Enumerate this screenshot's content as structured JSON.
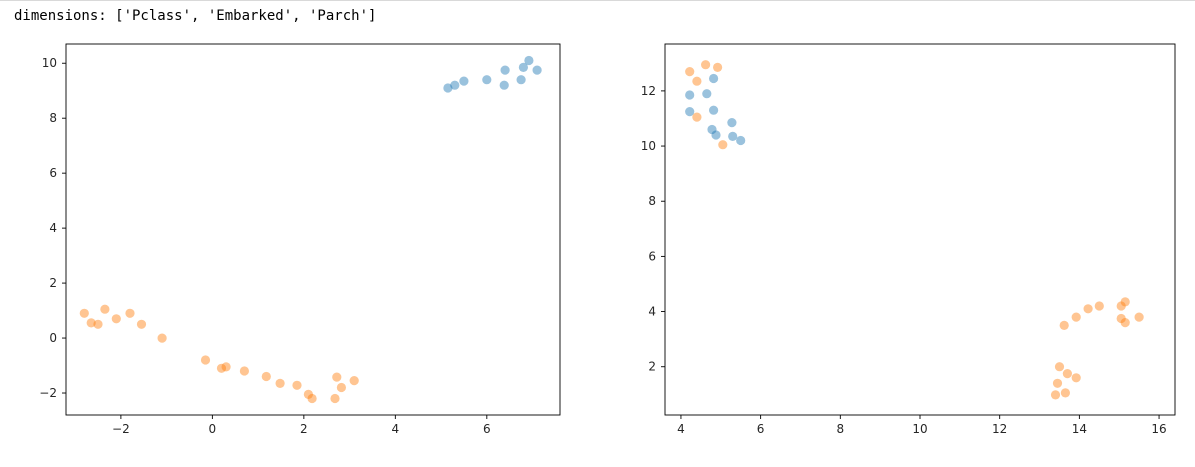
{
  "output": {
    "caption": "dimensions: ['Pclass', 'Embarked', 'Parch']"
  },
  "colors": {
    "series_a": "#1f77b4",
    "series_b": "#ff7f0e",
    "axis": "#000000",
    "tick_text": "#262626"
  },
  "chart_data": [
    {
      "type": "scatter",
      "xlim": [
        -3.2,
        7.6
      ],
      "ylim": [
        -2.8,
        10.7
      ],
      "xticks": [
        -2,
        0,
        2,
        4,
        6
      ],
      "yticks": [
        -2,
        0,
        2,
        4,
        6,
        8,
        10
      ],
      "grid": false,
      "series": [
        {
          "color": "#1f77b4",
          "points": [
            [
              5.15,
              9.1
            ],
            [
              5.3,
              9.2
            ],
            [
              5.5,
              9.35
            ],
            [
              6.0,
              9.4
            ],
            [
              6.38,
              9.2
            ],
            [
              6.4,
              9.75
            ],
            [
              6.75,
              9.4
            ],
            [
              6.8,
              9.85
            ],
            [
              6.92,
              10.1
            ],
            [
              7.1,
              9.75
            ]
          ]
        },
        {
          "color": "#ff7f0e",
          "points": [
            [
              -2.8,
              0.9
            ],
            [
              -2.65,
              0.55
            ],
            [
              -2.5,
              0.5
            ],
            [
              -2.35,
              1.05
            ],
            [
              -2.1,
              0.7
            ],
            [
              -1.8,
              0.9
            ],
            [
              -1.55,
              0.5
            ],
            [
              -1.1,
              0.0
            ],
            [
              -0.15,
              -0.8
            ],
            [
              0.2,
              -1.1
            ],
            [
              0.3,
              -1.05
            ],
            [
              0.7,
              -1.2
            ],
            [
              1.18,
              -1.4
            ],
            [
              1.48,
              -1.65
            ],
            [
              1.85,
              -1.72
            ],
            [
              2.1,
              -2.05
            ],
            [
              2.18,
              -2.2
            ],
            [
              2.68,
              -2.2
            ],
            [
              2.72,
              -1.42
            ],
            [
              2.82,
              -1.8
            ],
            [
              3.1,
              -1.55
            ]
          ]
        }
      ]
    },
    {
      "type": "scatter",
      "xlim": [
        3.6,
        16.4
      ],
      "ylim": [
        0.25,
        13.7
      ],
      "xticks": [
        4,
        6,
        8,
        10,
        12,
        14,
        16
      ],
      "yticks": [
        2,
        4,
        6,
        8,
        10,
        12
      ],
      "grid": false,
      "series": [
        {
          "color": "#1f77b4",
          "points": [
            [
              4.22,
              11.85
            ],
            [
              4.22,
              11.25
            ],
            [
              4.65,
              11.9
            ],
            [
              4.82,
              12.45
            ],
            [
              4.82,
              11.3
            ],
            [
              4.78,
              10.6
            ],
            [
              4.88,
              10.4
            ],
            [
              5.28,
              10.85
            ],
            [
              5.3,
              10.35
            ],
            [
              5.5,
              10.2
            ]
          ]
        },
        {
          "color": "#ff7f0e",
          "points": [
            [
              4.22,
              12.7
            ],
            [
              4.4,
              12.35
            ],
            [
              4.4,
              11.05
            ],
            [
              4.62,
              12.95
            ],
            [
              4.92,
              12.85
            ],
            [
              5.05,
              10.05
            ],
            [
              13.62,
              3.5
            ],
            [
              13.92,
              3.8
            ],
            [
              14.22,
              4.1
            ],
            [
              14.5,
              4.2
            ],
            [
              15.05,
              4.2
            ],
            [
              15.15,
              4.35
            ],
            [
              15.05,
              3.75
            ],
            [
              15.15,
              3.6
            ],
            [
              15.5,
              3.8
            ],
            [
              13.5,
              2.0
            ],
            [
              13.7,
              1.75
            ],
            [
              13.92,
              1.6
            ],
            [
              13.45,
              1.4
            ],
            [
              13.65,
              1.05
            ],
            [
              13.4,
              0.98
            ]
          ]
        }
      ]
    }
  ]
}
